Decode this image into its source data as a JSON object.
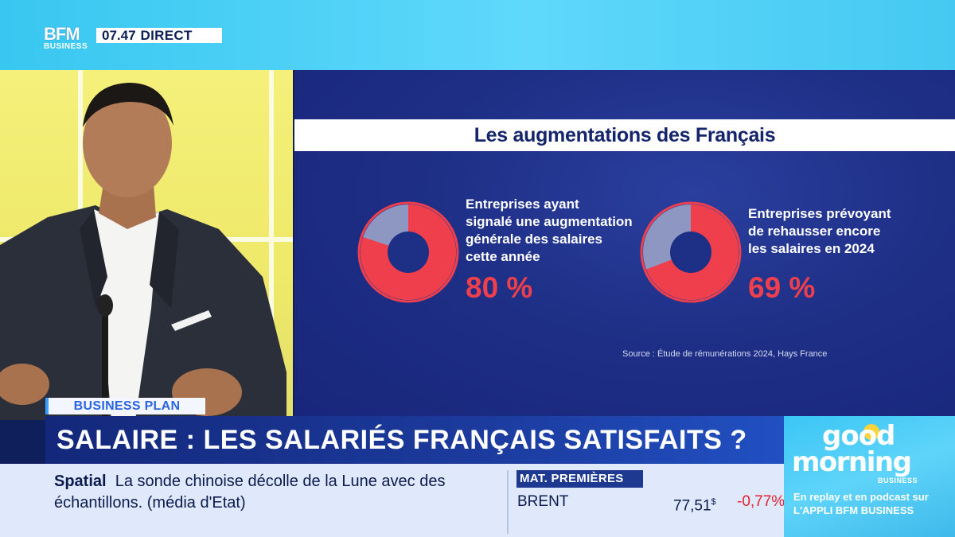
{
  "channel": {
    "time": "07.47",
    "live_label": "DIRECT"
  },
  "infographic": {
    "title": "Les augmentations des Français",
    "stats": [
      {
        "text_lines": [
          "Entreprises ayant",
          "signalé une augmentation",
          "générale des salaires",
          "cette année"
        ],
        "value": "80 %",
        "percent": 80
      },
      {
        "text_lines": [
          "Entreprises prévoyant",
          "de rehausser encore",
          "les salaires en 2024"
        ],
        "value": "69 %",
        "percent": 69
      }
    ],
    "source": "Source : Étude de rémunérations 2024, Hays France",
    "colors": {
      "accent": "#ef3f4c",
      "remainder": "#8d97c2",
      "panel": "#1e2f86"
    }
  },
  "lower_third": {
    "tag": "BUSINESS PLAN",
    "headline": "SALAIRE : LES SALARIÉS FRANÇAIS SATISFAITS ?"
  },
  "ticker": {
    "news_source": "Spatial",
    "news_text": "La sonde chinoise décolle de la Lune avec des",
    "news_text_2": "échantillons.",
    "news_attribution": "(média d'Etat)",
    "market_label": "MAT. PREMIÈRES",
    "market_name": "BRENT",
    "market_price": "77,51",
    "market_unit": "$",
    "market_change": "-0,77%"
  },
  "promo": {
    "line1": "good",
    "line2": "morning",
    "line3": "BUSINESS",
    "replay": "En replay et en podcast sur",
    "app": "L'APPLI BFM BUSINESS"
  }
}
